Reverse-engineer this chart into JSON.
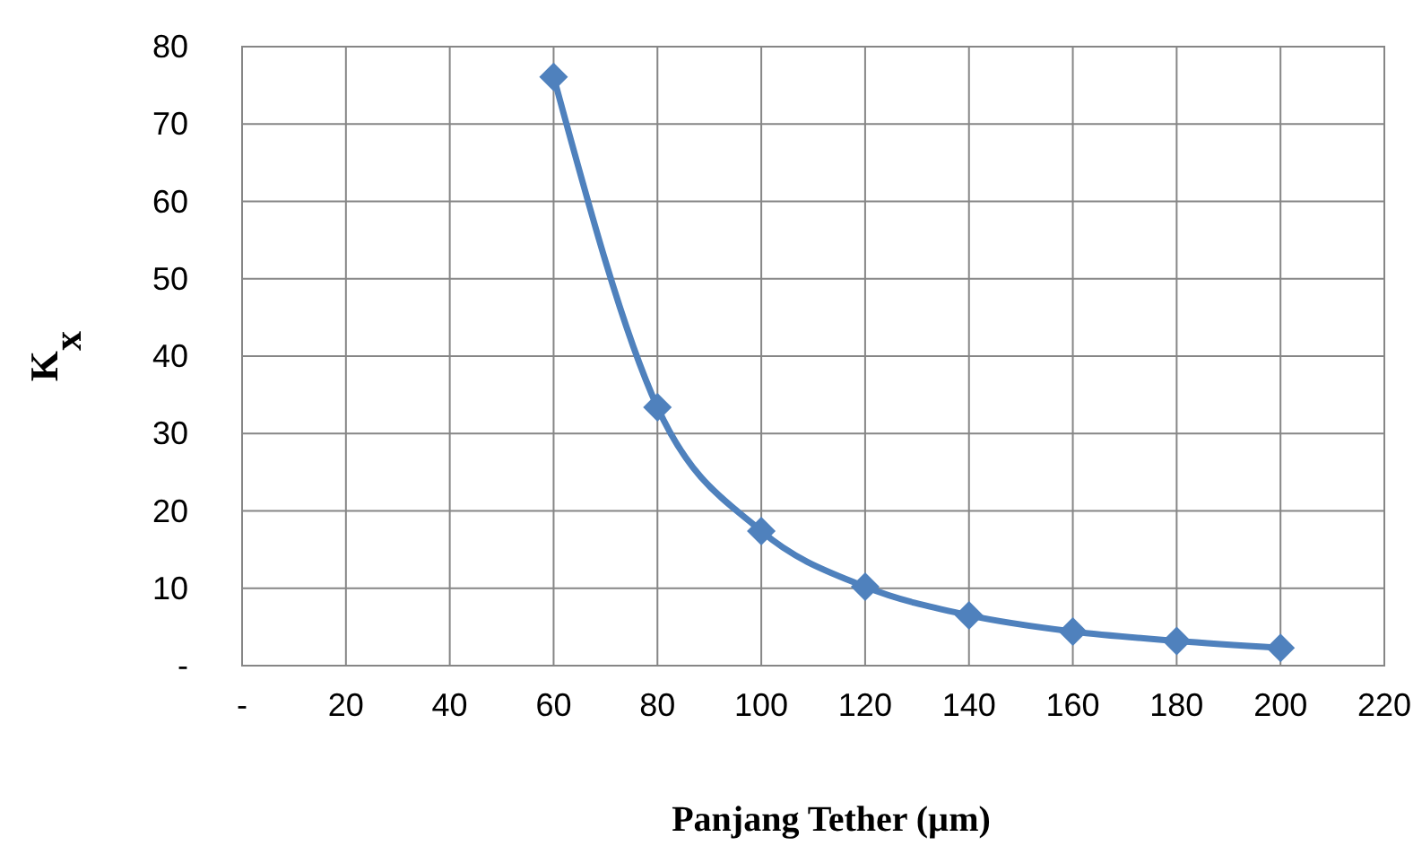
{
  "chart_data": {
    "type": "line",
    "xlabel": "Panjang Tether (µm)",
    "ylabel": "K$_{x}$",
    "x": [
      60,
      80,
      100,
      120,
      140,
      160,
      180,
      200
    ],
    "series": [
      {
        "color": "#4f81bd",
        "values": [
          76.1,
          33.4,
          17.4,
          10.2,
          6.5,
          4.4,
          3.2,
          2.3
        ]
      }
    ],
    "xlim": [
      0,
      220
    ],
    "xticks": [
      {
        "value": 0,
        "label": "-"
      },
      20,
      40,
      60,
      80,
      100,
      120,
      140,
      160,
      180,
      200,
      220
    ],
    "ylim": [
      0,
      80
    ],
    "yticks": [
      {
        "value": 0,
        "label": "-"
      },
      10,
      20,
      30,
      40,
      50,
      60,
      70,
      80
    ],
    "grid": true,
    "marker": "diamond",
    "line_style": "solid"
  }
}
